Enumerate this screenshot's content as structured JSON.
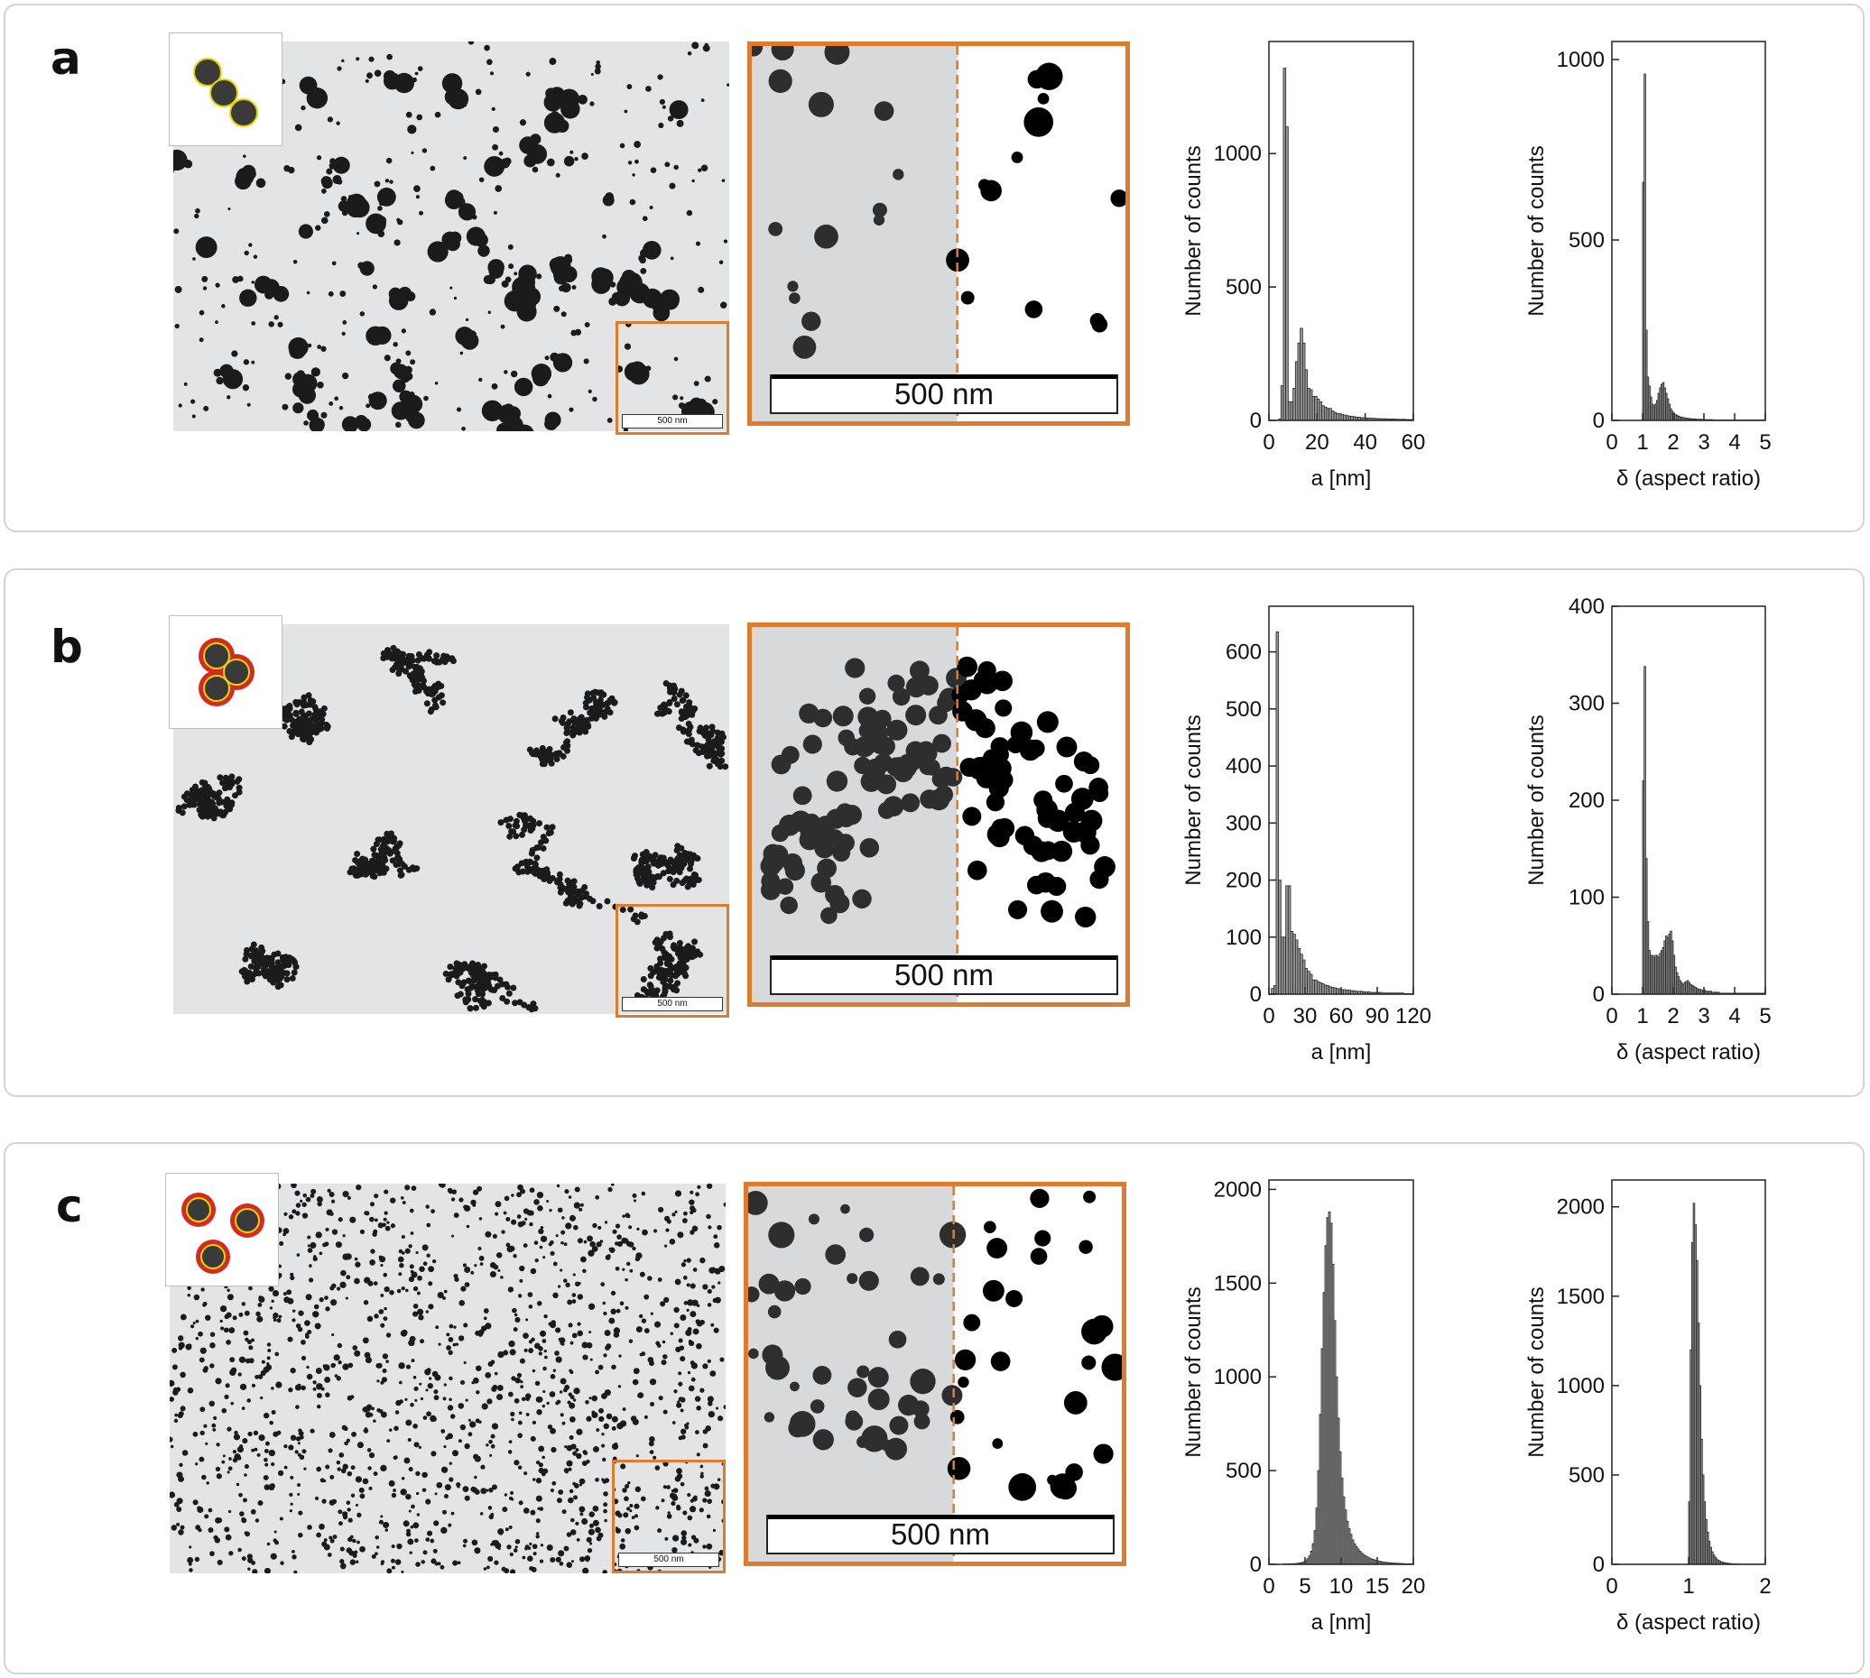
{
  "panels": [
    {
      "letter": "a",
      "scale_label": "500 nm",
      "inset_scale_label": "500 nm",
      "histograms": [
        {
          "type": "bar",
          "xlabel": "a [nm]",
          "ylabel": "Number of counts",
          "xlim": [
            0,
            60
          ],
          "ylim": [
            0,
            1420
          ],
          "xticks": [
            "0",
            "20",
            "40",
            "60"
          ],
          "yticks": [
            "0",
            "500",
            "1000"
          ],
          "x_start": 0,
          "bin_width": 1,
          "values": [
            0,
            0,
            0,
            0,
            5,
            130,
            1320,
            1100,
            70,
            70,
            120,
            220,
            290,
            345,
            290,
            190,
            120,
            115,
            90,
            90,
            80,
            70,
            55,
            50,
            45,
            45,
            35,
            30,
            25,
            25,
            22,
            20,
            18,
            16,
            15,
            14,
            12,
            12,
            10,
            10,
            9,
            9,
            8,
            8,
            7,
            7,
            6,
            6,
            6,
            5,
            5,
            5,
            5,
            4,
            4,
            4,
            4,
            3,
            3,
            3
          ]
        },
        {
          "type": "bar",
          "xlabel": "δ (aspect ratio)",
          "ylabel": "Number of counts",
          "xlim": [
            0,
            5
          ],
          "ylim": [
            0,
            1050
          ],
          "xticks": [
            "0",
            "1",
            "2",
            "3",
            "4",
            "5"
          ],
          "yticks": [
            "0",
            "500",
            "1000"
          ],
          "x_start": 1.0,
          "bin_width": 0.05,
          "values": [
            660,
            960,
            250,
            120,
            95,
            65,
            45,
            40,
            45,
            55,
            75,
            90,
            100,
            105,
            90,
            75,
            60,
            45,
            32,
            25,
            20,
            16,
            14,
            12,
            10,
            9,
            8,
            7,
            6,
            6,
            5,
            5,
            4,
            4,
            4,
            3,
            3,
            3,
            3,
            2,
            2,
            2,
            2,
            2,
            2,
            2,
            1,
            1,
            1,
            1,
            1,
            1,
            1,
            1,
            1,
            1,
            1,
            1,
            1,
            1,
            1,
            1,
            1,
            1,
            1,
            1,
            1,
            1,
            1,
            1,
            1,
            1,
            1,
            1,
            1,
            1,
            1,
            1,
            1,
            1
          ]
        }
      ]
    },
    {
      "letter": "b",
      "scale_label": "500 nm",
      "inset_scale_label": "500 nm",
      "histograms": [
        {
          "type": "bar",
          "xlabel": "a [nm]",
          "ylabel": "Number of counts",
          "xlim": [
            0,
            120
          ],
          "ylim": [
            0,
            680
          ],
          "xticks": [
            "0",
            "30",
            "60",
            "90",
            "120"
          ],
          "yticks": [
            "0",
            "100",
            "200",
            "300",
            "400",
            "500",
            "600"
          ],
          "x_start": 2,
          "bin_width": 2,
          "values": [
            10,
            15,
            635,
            200,
            100,
            100,
            190,
            190,
            110,
            105,
            95,
            80,
            70,
            60,
            45,
            40,
            35,
            25,
            25,
            22,
            20,
            18,
            16,
            15,
            13,
            12,
            11,
            10,
            9,
            8,
            8,
            7,
            7,
            6,
            6,
            5,
            5,
            5,
            4,
            4,
            4,
            3,
            3,
            3,
            3,
            3,
            2,
            2,
            2,
            2,
            2,
            2,
            2,
            2,
            2,
            1,
            1,
            1,
            1
          ]
        },
        {
          "type": "bar",
          "xlabel": "δ (aspect ratio)",
          "ylabel": "Number of counts",
          "xlim": [
            0,
            5
          ],
          "ylim": [
            0,
            400
          ],
          "xticks": [
            "0",
            "1",
            "2",
            "3",
            "4",
            "5"
          ],
          "yticks": [
            "0",
            "100",
            "200",
            "300",
            "400"
          ],
          "x_start": 1.0,
          "bin_width": 0.05,
          "values": [
            220,
            338,
            140,
            75,
            45,
            40,
            40,
            38,
            40,
            40,
            38,
            42,
            45,
            48,
            55,
            60,
            58,
            62,
            65,
            55,
            40,
            28,
            22,
            18,
            14,
            12,
            10,
            12,
            13,
            14,
            12,
            10,
            9,
            8,
            7,
            6,
            5,
            5,
            4,
            4,
            4,
            3,
            3,
            3,
            3,
            2,
            2,
            2,
            2,
            2,
            1,
            1,
            1,
            1,
            1,
            1,
            1,
            1,
            1,
            1,
            1,
            1,
            1,
            1,
            1,
            1,
            1,
            1,
            1,
            1,
            1,
            1,
            1,
            1,
            1,
            1,
            1,
            1,
            1,
            1
          ]
        }
      ]
    },
    {
      "letter": "c",
      "scale_label": "500 nm",
      "inset_scale_label": "500 nm",
      "histograms": [
        {
          "type": "bar",
          "xlabel": "a [nm]",
          "ylabel": "Number of counts",
          "xlim": [
            0,
            20
          ],
          "ylim": [
            0,
            2050
          ],
          "xticks": [
            "0",
            "5",
            "10",
            "15",
            "20"
          ],
          "yticks": [
            "0",
            "500",
            "1000",
            "1500",
            "2000"
          ],
          "x_start": 2.0,
          "bin_width": 0.25,
          "values": [
            2,
            2,
            2,
            3,
            3,
            3,
            4,
            5,
            6,
            8,
            10,
            14,
            20,
            30,
            45,
            70,
            110,
            180,
            300,
            500,
            800,
            1150,
            1450,
            1700,
            1850,
            1880,
            1820,
            1600,
            1300,
            1000,
            780,
            600,
            460,
            360,
            290,
            230,
            190,
            160,
            130,
            110,
            95,
            82,
            70,
            60,
            52,
            45,
            40,
            35,
            30,
            27,
            24,
            21,
            18,
            16,
            14,
            12,
            11,
            10,
            9,
            8,
            7,
            6,
            6,
            5,
            5,
            4,
            4,
            3,
            3,
            3,
            3,
            2
          ]
        },
        {
          "type": "bar",
          "xlabel": "δ (aspect ratio)",
          "ylabel": "Number of counts",
          "xlim": [
            0,
            2
          ],
          "ylim": [
            0,
            2150
          ],
          "xticks": [
            "0",
            "1",
            "2"
          ],
          "yticks": [
            "0",
            "500",
            "1000",
            "1500",
            "2000"
          ],
          "x_start": 1.0,
          "bin_width": 0.02,
          "values": [
            350,
            1200,
            1800,
            2020,
            1900,
            1700,
            1350,
            1000,
            700,
            500,
            350,
            250,
            180,
            130,
            95,
            70,
            52,
            40,
            30,
            23,
            18,
            14,
            11,
            9,
            7,
            6,
            5,
            4,
            3,
            3,
            2,
            2,
            2,
            1,
            1,
            1,
            1,
            1,
            1,
            1,
            1,
            1,
            1,
            1,
            1,
            1,
            1,
            1,
            1,
            1
          ]
        }
      ]
    }
  ],
  "colors": {
    "accent_orange": "#e07b2c",
    "particle_core": "#3a3a3a",
    "particle_yellow_ring": "#e8d400",
    "particle_red_shell": "#d42a1f",
    "tem_background": "#e3e4e6"
  }
}
